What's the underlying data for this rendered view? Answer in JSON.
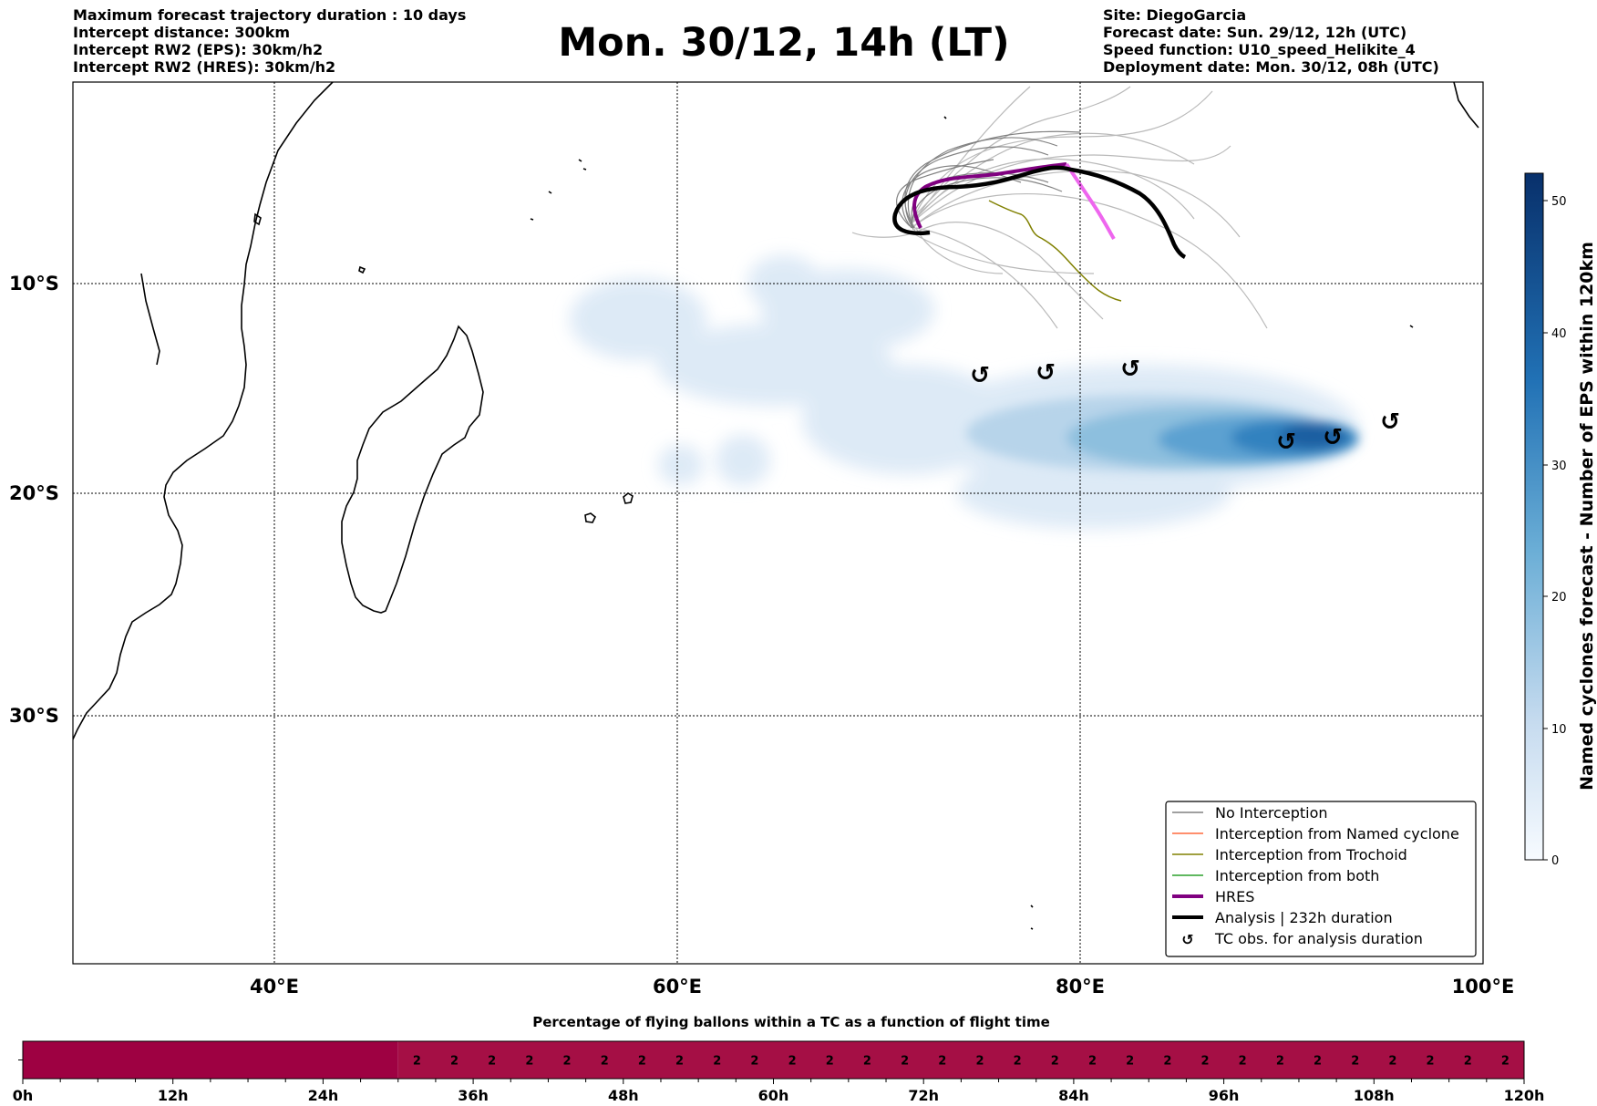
{
  "header": {
    "left_lines": [
      "Maximum forecast trajectory duration : 10 days",
      "Intercept distance: 300km",
      "Intercept RW2 (EPS):  30km/h2",
      "Intercept RW2 (HRES): 30km/h2"
    ],
    "title": "Mon. 30/12, 14h (LT)",
    "right_lines": [
      "Site: DiegoGarcia",
      "Forecast date: Sun. 29/12, 12h (UTC)",
      "Speed function: U10_speed_Helikite_4",
      "Deployment date: Mon. 30/12, 08h (UTC)"
    ]
  },
  "map": {
    "lat_labels": [
      "10°S",
      "20°S",
      "30°S"
    ],
    "lon_labels": [
      "40°E",
      "60°E",
      "80°E",
      "100°E"
    ],
    "tc_symbol": "↺"
  },
  "legend": {
    "items": [
      {
        "label": "No Interception",
        "color": "#808080"
      },
      {
        "label": "Interception from Named cyclone",
        "color": "#ff6a3d"
      },
      {
        "label": "Interception from Trochoid",
        "color": "#808000"
      },
      {
        "label": "Interception from both",
        "color": "#2ca02c"
      },
      {
        "label": "HRES",
        "color": "#800080"
      },
      {
        "label": "Analysis | 232h duration",
        "color": "#000000"
      },
      {
        "label": "TC obs. for analysis duration",
        "color": "#000000",
        "icon": "tc-cyclone-icon"
      }
    ]
  },
  "colorbar": {
    "label": "Named cyclones forecast - Number of EPS within 120km",
    "ticks": [
      "0",
      "10",
      "20",
      "30",
      "40",
      "50"
    ]
  },
  "timeline": {
    "title": "Percentage of flying ballons within a TC as a function of flight time",
    "tick_labels": [
      "0h",
      "12h",
      "24h",
      "36h",
      "48h",
      "60h",
      "72h",
      "84h",
      "96h",
      "108h",
      "120h"
    ],
    "cell_value": "2",
    "cell_count": 30,
    "colors": {
      "dark": "#9e0142",
      "light": "#a50f45"
    }
  }
}
